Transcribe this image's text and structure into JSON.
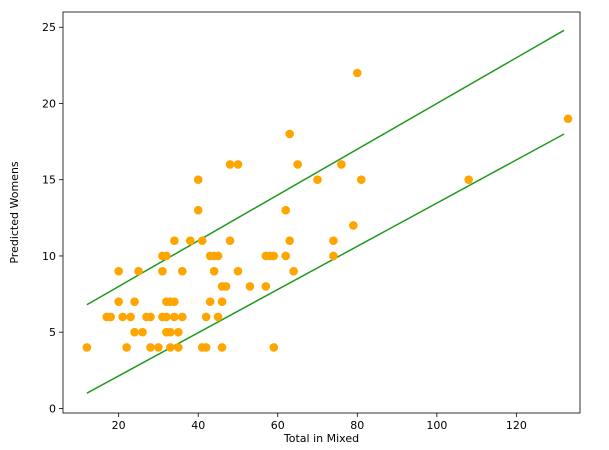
{
  "chart_data": {
    "type": "scatter",
    "xlabel": "Total in Mixed",
    "ylabel": "Predicted Womens",
    "xlim": [
      6,
      136
    ],
    "ylim": [
      -0.3,
      26
    ],
    "xticks": [
      20,
      40,
      60,
      80,
      100,
      120
    ],
    "yticks": [
      0,
      5,
      10,
      15,
      20,
      25
    ],
    "grid": false,
    "legend": "none",
    "colors": {
      "points": "#ffa500",
      "lines": "#1f9a1f"
    },
    "series": [
      {
        "kind": "points",
        "x": [
          12,
          17,
          18,
          20,
          20,
          21,
          22,
          23,
          24,
          24,
          25,
          26,
          27,
          28,
          28,
          30,
          31,
          31,
          31,
          32,
          32,
          32,
          32,
          33,
          33,
          33,
          34,
          34,
          34,
          35,
          35,
          36,
          36,
          38,
          40,
          40,
          41,
          41,
          42,
          42,
          43,
          43,
          44,
          44,
          45,
          45,
          46,
          46,
          46,
          47,
          48,
          48,
          50,
          50,
          53,
          57,
          57,
          58,
          59,
          59,
          62,
          62,
          63,
          63,
          64,
          65,
          70,
          74,
          74,
          76,
          79,
          80,
          81,
          108,
          133
        ],
        "y": [
          4,
          6,
          6,
          9,
          7,
          6,
          4,
          6,
          5,
          7,
          9,
          5,
          6,
          4,
          6,
          4,
          6,
          9,
          10,
          10,
          7,
          5,
          6,
          4,
          5,
          7,
          6,
          11,
          7,
          5,
          4,
          9,
          6,
          11,
          15,
          13,
          4,
          11,
          6,
          4,
          10,
          7,
          10,
          9,
          6,
          10,
          8,
          4,
          7,
          8,
          16,
          11,
          16,
          9,
          8,
          10,
          8,
          10,
          10,
          4,
          13,
          10,
          18,
          11,
          9,
          16,
          15,
          11,
          10,
          16,
          12,
          22,
          15,
          15,
          19
        ]
      },
      {
        "kind": "line",
        "x": [
          12,
          132
        ],
        "y": [
          6.8,
          24.8
        ]
      },
      {
        "kind": "line",
        "x": [
          12,
          132
        ],
        "y": [
          1.0,
          18.0
        ]
      }
    ]
  }
}
